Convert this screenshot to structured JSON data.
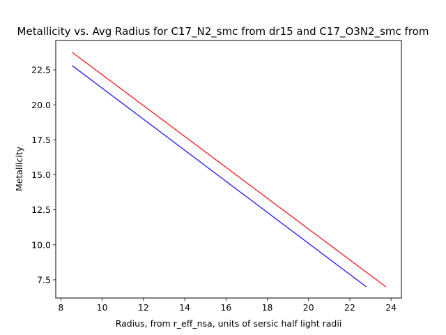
{
  "chart_data": {
    "type": "line",
    "title": "Metallicity vs. Avg Radius for C17_N2_smc from dr15 and C17_O3N2_smc from",
    "xlabel": "Radius, from r_eff_nsa, units of sersic half light radii",
    "ylabel": "Metallicity",
    "xlim": [
      7.75,
      24.5
    ],
    "ylim": [
      6.2,
      24.6
    ],
    "xticks": [
      8,
      10,
      12,
      14,
      16,
      18,
      20,
      22,
      24
    ],
    "yticks": [
      7.5,
      10.0,
      12.5,
      15.0,
      17.5,
      20.0,
      22.5
    ],
    "xtick_labels": [
      "8",
      "10",
      "12",
      "14",
      "16",
      "18",
      "20",
      "22",
      "24"
    ],
    "ytick_labels": [
      "7.5",
      "10.0",
      "12.5",
      "15.0",
      "17.5",
      "20.0",
      "22.5"
    ],
    "grid": false,
    "legend": "none",
    "series": [
      {
        "color": "#3333ee",
        "x": [
          8.55,
          22.8
        ],
        "y": [
          22.8,
          7.0
        ]
      },
      {
        "color": "#ee3333",
        "x": [
          8.55,
          23.75
        ],
        "y": [
          23.75,
          7.0
        ]
      }
    ]
  }
}
